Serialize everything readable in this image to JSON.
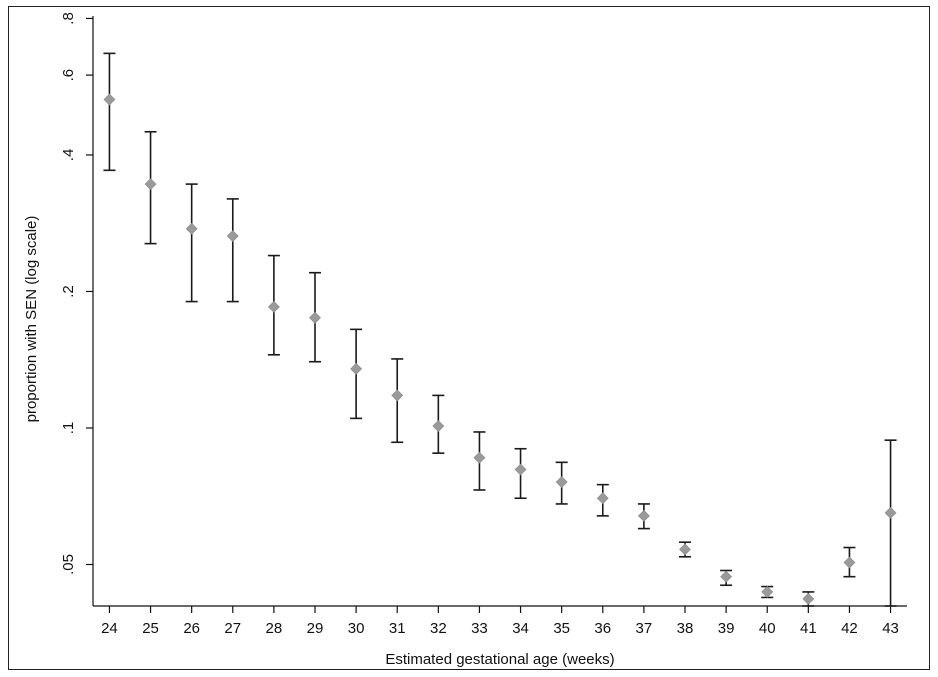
{
  "chart_data": {
    "type": "scatter",
    "subtype": "point-with-error-bars",
    "title": "",
    "xlabel": "Estimated gestational age (weeks)",
    "ylabel": "proportion with SEN (log scale)",
    "y_scale": "log",
    "xlim": [
      23.6,
      43.4
    ],
    "ylim": [
      0.0405,
      0.81
    ],
    "x_ticks": [
      24,
      25,
      26,
      27,
      28,
      29,
      30,
      31,
      32,
      33,
      34,
      35,
      36,
      37,
      38,
      39,
      40,
      41,
      42,
      43
    ],
    "y_ticks": [
      {
        "value": 0.05,
        "label": ".05"
      },
      {
        "value": 0.1,
        "label": ".1"
      },
      {
        "value": 0.2,
        "label": ".2"
      },
      {
        "value": 0.4,
        "label": ".4"
      },
      {
        "value": 0.6,
        "label": ".6"
      },
      {
        "value": 0.8,
        "label": ".8"
      }
    ],
    "grid": false,
    "marker_color": "#9a9a9a",
    "errorbar_color": "#1a1a1a",
    "points": [
      {
        "x": 24,
        "y": 0.53,
        "lo": 0.37,
        "hi": 0.67
      },
      {
        "x": 25,
        "y": 0.345,
        "lo": 0.255,
        "hi": 0.45
      },
      {
        "x": 26,
        "y": 0.275,
        "lo": 0.19,
        "hi": 0.345
      },
      {
        "x": 27,
        "y": 0.265,
        "lo": 0.19,
        "hi": 0.32
      },
      {
        "x": 28,
        "y": 0.185,
        "lo": 0.145,
        "hi": 0.24
      },
      {
        "x": 29,
        "y": 0.175,
        "lo": 0.14,
        "hi": 0.22
      },
      {
        "x": 30,
        "y": 0.135,
        "lo": 0.105,
        "hi": 0.165
      },
      {
        "x": 31,
        "y": 0.118,
        "lo": 0.093,
        "hi": 0.142
      },
      {
        "x": 32,
        "y": 0.101,
        "lo": 0.088,
        "hi": 0.118
      },
      {
        "x": 33,
        "y": 0.086,
        "lo": 0.073,
        "hi": 0.098
      },
      {
        "x": 34,
        "y": 0.081,
        "lo": 0.07,
        "hi": 0.09
      },
      {
        "x": 35,
        "y": 0.076,
        "lo": 0.068,
        "hi": 0.084
      },
      {
        "x": 36,
        "y": 0.07,
        "lo": 0.064,
        "hi": 0.075
      },
      {
        "x": 37,
        "y": 0.064,
        "lo": 0.06,
        "hi": 0.068
      },
      {
        "x": 38,
        "y": 0.054,
        "lo": 0.052,
        "hi": 0.056
      },
      {
        "x": 39,
        "y": 0.047,
        "lo": 0.045,
        "hi": 0.0485
      },
      {
        "x": 40,
        "y": 0.0435,
        "lo": 0.0423,
        "hi": 0.0447
      },
      {
        "x": 41,
        "y": 0.042,
        "lo": 0.0405,
        "hi": 0.0435
      },
      {
        "x": 42,
        "y": 0.0505,
        "lo": 0.047,
        "hi": 0.0545
      },
      {
        "x": 43,
        "y": 0.065,
        "lo": 0.0405,
        "hi": 0.094
      }
    ]
  }
}
